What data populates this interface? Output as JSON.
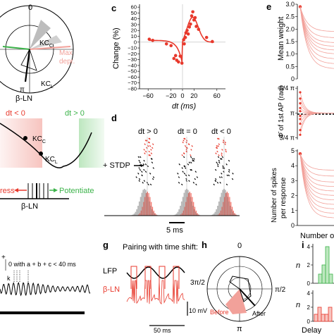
{
  "colors": {
    "red": "#e8392c",
    "pink": "#f2a19a",
    "green": "#3cb34a",
    "gray": "#9a9a9a",
    "light_green": "#bde7bf",
    "light_red": "#f7c4bf"
  },
  "panel_letters": {
    "c": "c",
    "d": "d",
    "e": "e",
    "g": "g",
    "h": "h",
    "i": "i"
  },
  "polar_top": {
    "label_zero": "0",
    "kc_c": "KC",
    "kc_c_sub": "C",
    "max_depr_1": "Max",
    "max_depr_2": "depr.",
    "kc_l": "KC",
    "kc_l_sub": "L",
    "pi": "π",
    "beta_ln": "β-LN"
  },
  "stdp_window": {
    "dt_neg": "dt < 0",
    "dt_pos": "dt > 0",
    "kc_c": "KC",
    "kc_c_sub": "C",
    "kc_l": "KC",
    "kc_l_sub": "L",
    "depress": "ress",
    "potentiate": "Potentiate",
    "beta_ln": "β-LN"
  },
  "panel_f_partial": {
    "plus": "+",
    "sum_text": "0 with a + b + c < 40 ms",
    "k": "k"
  },
  "chart_data": [
    {
      "panel": "c",
      "type": "scatter",
      "ylabel": "Change (%)",
      "xlabel": "dt (ms)",
      "x_ticks": [
        "−60",
        "−20",
        "0",
        "20",
        "60"
      ],
      "y_ticks": [
        "60",
        "50",
        "40",
        "30",
        "20",
        "10",
        "0",
        "−10",
        "−20",
        "−30",
        "−40",
        "−50",
        "−60",
        "−70",
        "−80"
      ],
      "xlim": [
        -75,
        75
      ],
      "ylim": [
        -80,
        65
      ],
      "points": [
        [
          -58,
          5
        ],
        [
          -52,
          3
        ],
        [
          -28,
          -3
        ],
        [
          -20,
          -6
        ],
        [
          -15,
          -28
        ],
        [
          -12,
          -23
        ],
        [
          -10,
          -31
        ],
        [
          -7,
          -34
        ],
        [
          -4,
          -24
        ],
        [
          -1,
          -36
        ],
        [
          2,
          4
        ],
        [
          3,
          -3
        ],
        [
          5,
          8
        ],
        [
          6,
          16
        ],
        [
          8,
          20
        ],
        [
          10,
          14
        ],
        [
          12,
          26
        ],
        [
          14,
          31
        ],
        [
          16,
          45
        ],
        [
          18,
          52
        ],
        [
          20,
          38
        ],
        [
          22,
          42
        ],
        [
          24,
          27
        ],
        [
          28,
          22
        ],
        [
          42,
          8
        ],
        [
          52,
          1
        ]
      ]
    },
    {
      "panel": "d",
      "type": "raster",
      "groups": [
        "dt > 0",
        "dt = 0",
        "dt < 0"
      ],
      "label": "+ STDP",
      "scale_bar": "5 ms"
    },
    {
      "panel": "e1",
      "type": "line",
      "ylabel": "Mean weight",
      "y_ticks": [
        "0",
        "0.5",
        "1.0",
        "1.5",
        "2.0",
        "2.5",
        "3.0"
      ],
      "ylim": [
        0,
        3.0
      ],
      "start": 2.9,
      "series_count": 9
    },
    {
      "panel": "e2",
      "type": "line",
      "ylabel": "Φ̄ of 1st AP (rad)",
      "y_ticks": [
        "5/4 π",
        "π",
        "3/4 π"
      ],
      "ylim": [
        2.3,
        4.0
      ]
    },
    {
      "panel": "e3",
      "type": "line",
      "ylabel_1": "Number of spikes",
      "ylabel_2": "per response",
      "xlabel": "Number o",
      "y_ticks": [
        "0",
        "1",
        "2",
        "3",
        "4",
        "5"
      ],
      "ylim": [
        0,
        5
      ]
    },
    {
      "panel": "g",
      "type": "trace",
      "title": "Pairing with time shift:",
      "trace_1": "LFP",
      "trace_2": "β-LN",
      "scale_v": "10 mV",
      "scale_t": "50 ms"
    },
    {
      "panel": "h",
      "type": "polar",
      "angle_labels": [
        "0",
        "π/2",
        "3π/2",
        "π"
      ],
      "before": "Before",
      "after": "After"
    },
    {
      "panel": "i",
      "type": "bar",
      "ylabel": "n",
      "xlabel": "Delay",
      "top": {
        "y_ticks": [
          "0",
          "2",
          "4"
        ],
        "ylim": [
          0,
          4
        ],
        "values": [
          1,
          2,
          4,
          1
        ],
        "color": "#3cb34a"
      },
      "bottom": {
        "y_ticks": [
          "0",
          "2",
          "4"
        ],
        "ylim": [
          0,
          4
        ],
        "values": [
          1,
          2,
          1,
          1,
          2
        ],
        "color": "#e8392c"
      }
    }
  ]
}
